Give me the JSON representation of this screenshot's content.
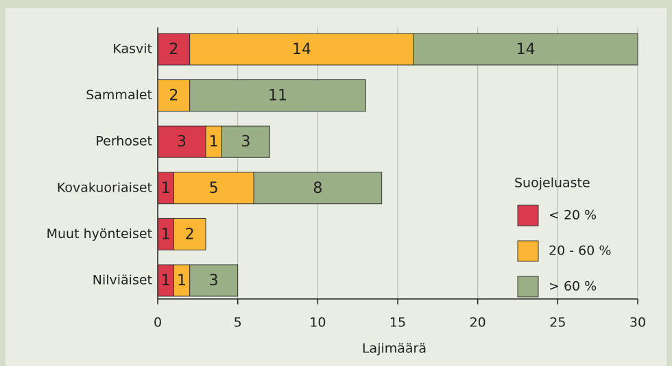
{
  "chart_data": {
    "type": "stacked-bar-horizontal",
    "categories": [
      "Kasvit",
      "Sammalet",
      "Perhoset",
      "Kovakuoriaiset",
      "Muut hyönteiset",
      "Nilviäiset"
    ],
    "series": [
      {
        "name": "< 20 %",
        "color": "#d93a4c",
        "values": [
          2,
          null,
          3,
          1,
          1,
          1
        ]
      },
      {
        "name": "20 - 60 %",
        "color": "#fbb634",
        "values": [
          14,
          2,
          1,
          5,
          2,
          1
        ]
      },
      {
        "name": "> 60 %",
        "color": "#9aaf86",
        "values": [
          14,
          11,
          3,
          8,
          null,
          3
        ]
      }
    ],
    "xlim": [
      0,
      30
    ],
    "xticks": [
      0,
      5,
      10,
      15,
      20,
      25,
      30
    ],
    "grid": true,
    "xlabel": "Lajimäärä",
    "legend_title": "Suojeluaste",
    "legend_position": "right"
  }
}
